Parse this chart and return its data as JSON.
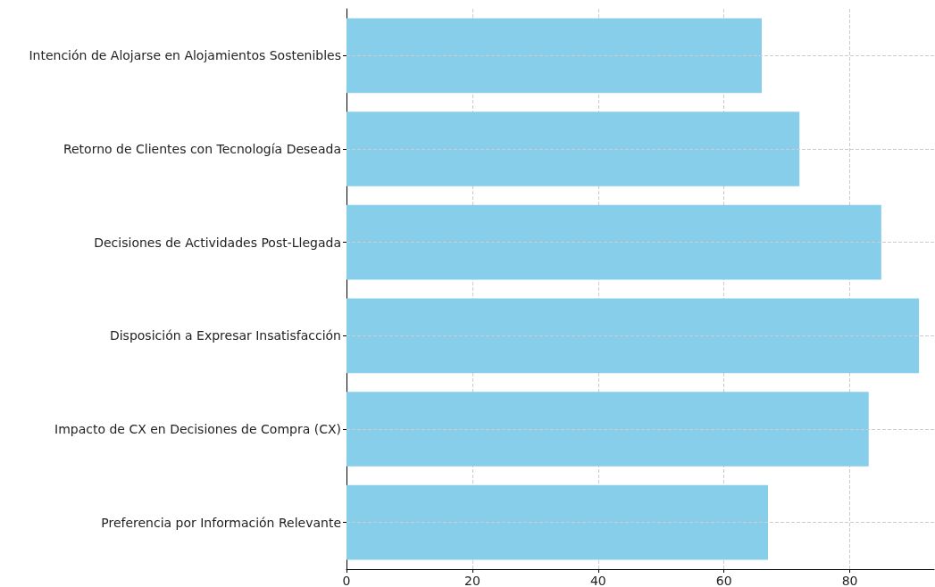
{
  "chart_data": {
    "type": "bar",
    "orientation": "horizontal",
    "categories": [
      "Intención de Alojarse en Alojamientos Sostenibles",
      "Retorno de Clientes con Tecnología Deseada",
      "Decisiones de Actividades Post-Llegada",
      "Disposición a Expresar Insatisfacción",
      "Impacto de CX en Decisiones de Compra (CX)",
      "Preferencia por Información Relevante"
    ],
    "values": [
      66,
      72,
      85,
      91,
      83,
      67
    ],
    "color": "#87ceeb",
    "xlim": [
      0,
      93.4
    ],
    "xticks": [
      0,
      20,
      40,
      60,
      80
    ],
    "grid": true
  }
}
